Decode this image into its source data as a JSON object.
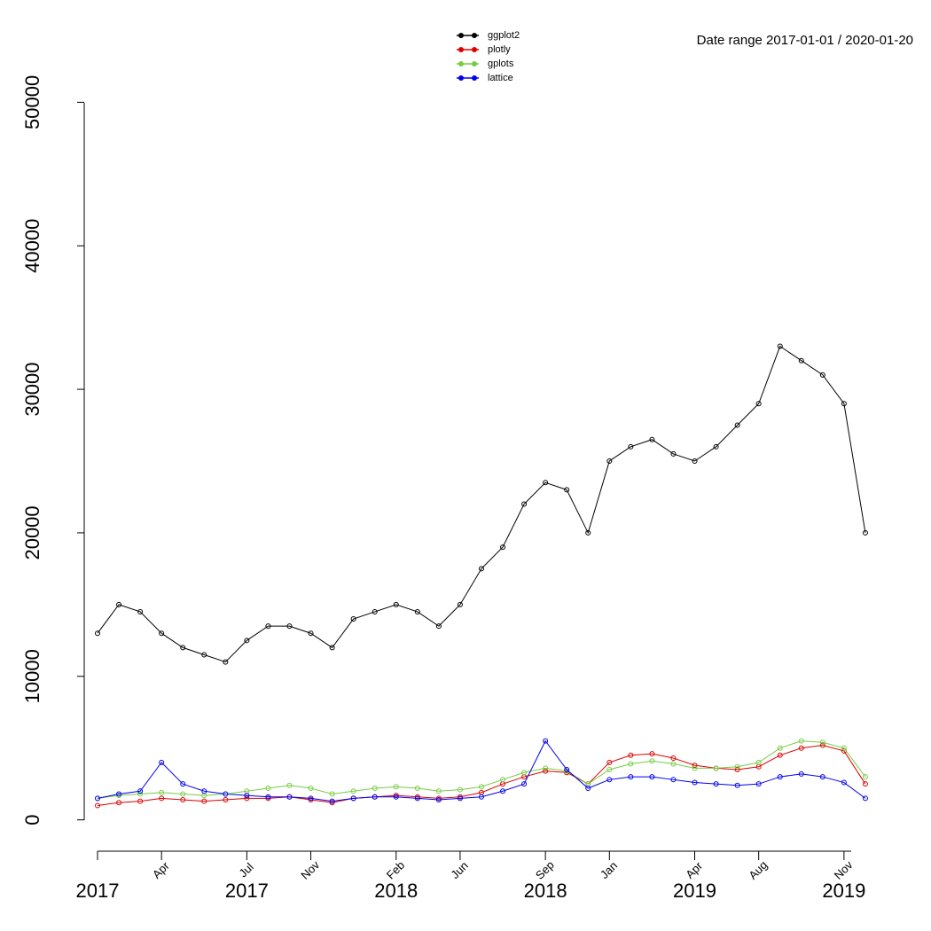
{
  "chart_data": {
    "type": "line",
    "subtitle": "Date range  2017-01-01 / 2020-01-20",
    "x": [
      "2017-01",
      "2017-02",
      "2017-03",
      "2017-04",
      "2017-05",
      "2017-06",
      "2017-07",
      "2017-08",
      "2017-09",
      "2017-10",
      "2017-11",
      "2017-12",
      "2018-01",
      "2018-02",
      "2018-03",
      "2018-04",
      "2018-05",
      "2018-06",
      "2018-07",
      "2018-08",
      "2018-09",
      "2018-10",
      "2018-11",
      "2018-12",
      "2019-01",
      "2019-02",
      "2019-03",
      "2019-04",
      "2019-05",
      "2019-06",
      "2019-07",
      "2019-08",
      "2019-09",
      "2019-10",
      "2019-11",
      "2019-12",
      "2020-01"
    ],
    "series": [
      {
        "name": "ggplot2",
        "color": "#000000",
        "values": [
          13000,
          15000,
          14500,
          13000,
          12000,
          11500,
          11000,
          12500,
          13500,
          13500,
          13000,
          12000,
          14000,
          14500,
          15000,
          14500,
          13500,
          15000,
          17500,
          19000,
          22000,
          23500,
          23000,
          20000,
          25000,
          26000,
          26500,
          25500,
          25000,
          26000,
          27500,
          29000,
          33000,
          32000,
          31000,
          29000,
          20000
        ]
      },
      {
        "name": "plotly",
        "color": "#dd0000",
        "values": [
          1000,
          1200,
          1300,
          1500,
          1400,
          1300,
          1400,
          1500,
          1500,
          1600,
          1400,
          1200,
          1500,
          1600,
          1700,
          1600,
          1500,
          1600,
          1900,
          2500,
          3000,
          3400,
          3300,
          2500,
          4000,
          4500,
          4600,
          4300,
          3800,
          3600,
          3500,
          3700,
          4500,
          5000,
          5200,
          4800,
          2500
        ]
      },
      {
        "name": "gplots",
        "color": "#77cc44",
        "values": [
          1500,
          1700,
          1800,
          1900,
          1800,
          1700,
          1800,
          2000,
          2200,
          2400,
          2200,
          1800,
          2000,
          2200,
          2300,
          2200,
          2000,
          2100,
          2300,
          2800,
          3300,
          3600,
          3400,
          2500,
          3500,
          3900,
          4100,
          3900,
          3600,
          3600,
          3700,
          4000,
          5000,
          5500,
          5400,
          5000,
          3000
        ]
      },
      {
        "name": "lattice",
        "color": "#0000ee",
        "values": [
          1500,
          1800,
          2000,
          4000,
          2500,
          2000,
          1800,
          1700,
          1600,
          1600,
          1500,
          1300,
          1500,
          1600,
          1600,
          1500,
          1400,
          1500,
          1600,
          2000,
          2500,
          5500,
          3500,
          2200,
          2800,
          3000,
          3000,
          2800,
          2600,
          2500,
          2400,
          2500,
          3000,
          3200,
          3000,
          2600,
          1500
        ]
      }
    ],
    "xlim": [
      "2017-01",
      "2020-02"
    ],
    "xticks": [
      {
        "value": "2017-01",
        "label": "2017"
      },
      {
        "value": "2017-04",
        "label": "Apr"
      },
      {
        "value": "2017-08",
        "label": "Jul",
        "year": "2017"
      },
      {
        "value": "2017-11",
        "label": "Nov"
      },
      {
        "value": "2018-03",
        "label": "Feb",
        "year": "2018"
      },
      {
        "value": "2018-06",
        "label": "Jun"
      },
      {
        "value": "2018-10",
        "label": "Sep",
        "year": "2018"
      },
      {
        "value": "2019-01",
        "label": "Jan"
      },
      {
        "value": "2019-05",
        "label": "Apr",
        "year": "2019"
      },
      {
        "value": "2019-08",
        "label": "Aug"
      },
      {
        "value": "2019-12",
        "label": "Nov",
        "year": "2019"
      }
    ],
    "ylim": [
      -2000,
      52000
    ],
    "yticks": [
      0,
      10000,
      20000,
      30000,
      40000,
      50000
    ],
    "legend": "top"
  }
}
